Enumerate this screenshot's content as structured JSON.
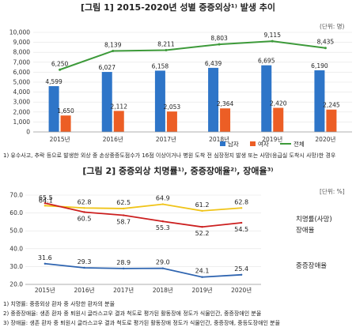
{
  "chart_data": [
    {
      "type": "bar",
      "title": "[그림 1] 2015-2020년 성별 중증외상¹⁾ 발생 추이",
      "unit": "(단위: 명)",
      "categories": [
        "2015년",
        "2016년",
        "2017년",
        "2018년",
        "2019년",
        "2020년"
      ],
      "ylim": [
        0,
        10000
      ],
      "yticks": [
        "0",
        "1,000",
        "2,000",
        "3,000",
        "4,000",
        "5,000",
        "6,000",
        "7,000",
        "8,000",
        "9,000",
        "10,000"
      ],
      "series": [
        {
          "name": "남자",
          "type": "bar",
          "color": "#2e75c8",
          "values": [
            4599,
            6027,
            6158,
            6439,
            6695,
            6190
          ],
          "labels": [
            "4,599",
            "6,027",
            "6,158",
            "6,439",
            "6,695",
            "6,190"
          ]
        },
        {
          "name": "여자",
          "type": "bar",
          "color": "#ec5e25",
          "values": [
            1650,
            2112,
            2053,
            2364,
            2420,
            2245
          ],
          "labels": [
            "1,650",
            "2,112",
            "2,053",
            "2,364",
            "2,420",
            "2,245"
          ]
        },
        {
          "name": "전체",
          "type": "line",
          "color": "#3d9a3a",
          "values": [
            6250,
            8139,
            8211,
            8803,
            9115,
            8435
          ],
          "labels": [
            "6,250",
            "8,139",
            "8,211",
            "8,803",
            "9,115",
            "8,435"
          ]
        }
      ],
      "legend": "bottom-right",
      "footnote": "1) 유수사고, 추락 등으로 발생한 외상 중 손상중증도점수가 16점 이상이거나 병원 도착 전 심장정지 발생 또는 사망(응급실 도착시 사망)한 경우"
    },
    {
      "type": "line",
      "title": "[그림 2] 중증외상 치명률¹⁾, 중증장애율²⁾, 장애율³⁾",
      "unit": "[단위: %]",
      "categories": [
        "2015년",
        "2016년",
        "2017년",
        "2018년",
        "2019년",
        "2020년"
      ],
      "ylim": [
        20,
        70
      ],
      "yticks": [
        "20.0",
        "30.0",
        "40.0",
        "50.0",
        "60.0",
        "70.0"
      ],
      "series": [
        {
          "name": "장애율",
          "color": "#f0c419",
          "values": [
            64.1,
            62.8,
            62.5,
            64.9,
            61.2,
            62.8
          ],
          "labels": [
            "64.1",
            "62.8",
            "62.5",
            "64.9",
            "61.2",
            "62.8"
          ]
        },
        {
          "name": "치명률(사망)",
          "color": "#cc1f1f",
          "values": [
            65.5,
            60.5,
            58.7,
            55.3,
            52.2,
            54.5
          ],
          "labels": [
            "65.5",
            "60.5",
            "58.7",
            "55.3",
            "52.2",
            "54.5"
          ]
        },
        {
          "name": "중증장애율",
          "color": "#2e64b0",
          "values": [
            31.6,
            29.3,
            28.9,
            29.0,
            24.1,
            25.4
          ],
          "labels": [
            "31.6",
            "29.3",
            "28.9",
            "29.0",
            "24.1",
            "25.4"
          ]
        }
      ],
      "footnotes": [
        "1) 치명률: 중증외상 환자 중 사망한 환자의 분율",
        "2) 중증장애율: 생존 환자 중 퇴원시 글라스고우 결과 척도로 평가된 활동장애 정도가 식물인간, 중증장애인 분율",
        "3) 장애율: 생존 환자 중 퇴원시 글라스고우 결과 척도로 평가된 활동장애 정도가 식물인간, 중증장애, 중등도장애인 분율"
      ]
    }
  ]
}
